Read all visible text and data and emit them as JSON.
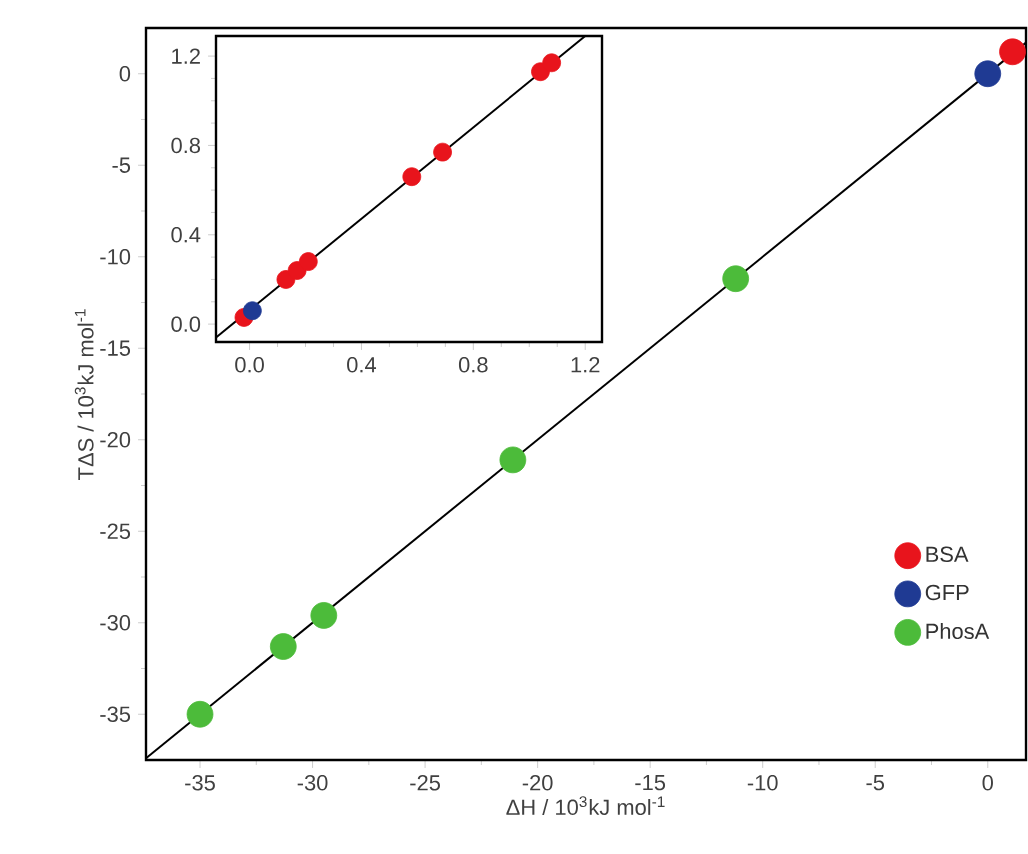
{
  "chart_data": [
    {
      "type": "scatter",
      "xlabel": "ΔH / 10$^{3}$kJ mol$^{-1}$",
      "ylabel": "TΔS / 10$^{3}$kJ mol$^{-1}$",
      "xlim": [
        -37.4,
        1.7
      ],
      "ylim": [
        -37.5,
        2.5
      ],
      "xticks": [
        -35,
        -30,
        -25,
        -20,
        -15,
        -10,
        -5,
        0
      ],
      "yticks": [
        -35,
        -30,
        -25,
        -20,
        -15,
        -10,
        -5,
        0
      ],
      "legend": "bottom right",
      "grid": false,
      "series": [
        {
          "type": "line",
          "color": "#000000",
          "line_style": "solid",
          "marker": "none",
          "x": [
            -37.4,
            1.7
          ],
          "values": [
            -37.4,
            1.7
          ]
        },
        {
          "name": "BSA",
          "color": "#e8141c",
          "marker": "circle",
          "x": [
            1.1
          ],
          "values": [
            1.2
          ]
        },
        {
          "name": "GFP",
          "color": "#1f3a93",
          "marker": "circle",
          "x": [
            0
          ],
          "values": [
            0
          ]
        },
        {
          "name": "PhosA",
          "color": "#4cbb3a",
          "marker": "circle",
          "x": [
            -35.0,
            -31.3,
            -29.5,
            -21.1,
            -11.2
          ],
          "values": [
            -35.0,
            -31.3,
            -29.6,
            -21.1,
            -11.2
          ]
        }
      ]
    },
    {
      "type": "scatter",
      "xlim": [
        -0.12,
        1.26
      ],
      "ylim": [
        -0.08,
        1.29
      ],
      "xticks": [
        {
          "value": 0,
          "label": "0.0"
        },
        0.4,
        0.8,
        1.2
      ],
      "yticks": [
        {
          "value": 0,
          "label": "0.0"
        },
        0.4,
        0.8,
        1.2
      ],
      "grid": false,
      "series": [
        {
          "type": "line",
          "color": "#000000",
          "line_style": "solid",
          "marker": "none",
          "x": [
            -0.12,
            1.2
          ],
          "values": [
            -0.06,
            1.29
          ]
        },
        {
          "color": "#e8141c",
          "marker": "circle",
          "x": [
            -0.02,
            0.13,
            0.17,
            0.21,
            0.58,
            0.69,
            1.04,
            1.08
          ],
          "values": [
            0.03,
            0.2,
            0.24,
            0.28,
            0.66,
            0.77,
            1.13,
            1.17
          ]
        },
        {
          "color": "#1f3a93",
          "marker": "circle",
          "x": [
            0.01
          ],
          "values": [
            0.06
          ]
        }
      ]
    }
  ]
}
